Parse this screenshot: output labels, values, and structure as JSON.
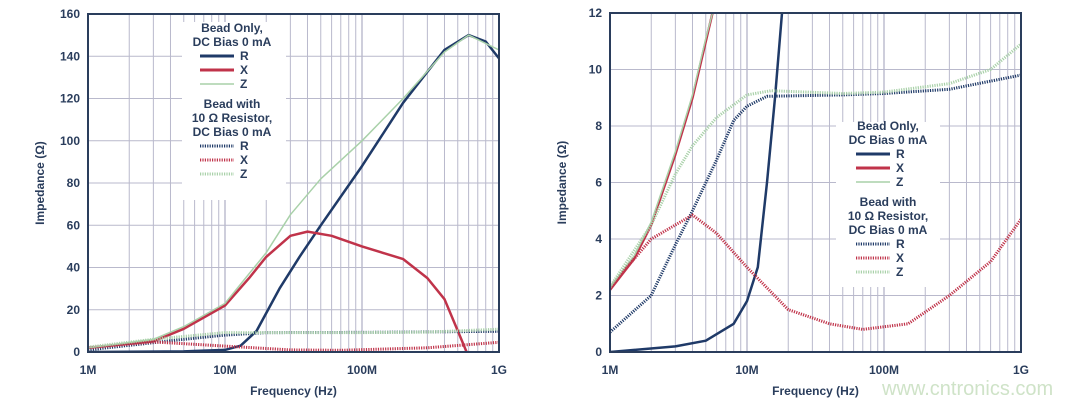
{
  "colors": {
    "R": "#1f3a68",
    "X": "#c0334a",
    "Z": "#a9d1a9",
    "grid": "#b9b9cc",
    "axis": "#2a3d5c"
  },
  "watermark": "www.cntronics.com",
  "chart_data": [
    {
      "type": "line",
      "xscale": "log",
      "xlabel": "Frequency (Hz)",
      "ylabel": "Impedance (Ω)",
      "xlim": [
        1,
        1000
      ],
      "ylim": [
        0,
        160
      ],
      "grid": true,
      "legend_position": "top-center",
      "xticks": [
        {
          "v": 1,
          "label": "1M"
        },
        {
          "v": 10,
          "label": "10M"
        },
        {
          "v": 100,
          "label": "100M"
        },
        {
          "v": 1000,
          "label": "1G"
        }
      ],
      "yticks": [
        0,
        20,
        40,
        60,
        80,
        100,
        120,
        140,
        160
      ],
      "legend": {
        "group1": [
          "Bead Only,",
          "DC Bias 0 mA"
        ],
        "group2": [
          "Bead with",
          "10 Ω Resistor,",
          "DC Bias 0 mA"
        ]
      },
      "series": [
        {
          "name": "R",
          "group": "group1",
          "style": "solid",
          "x": [
            1,
            5,
            10,
            13,
            17,
            25,
            35,
            50,
            100,
            200,
            400,
            600,
            800,
            1000
          ],
          "y": [
            0,
            0.3,
            1,
            3,
            10,
            30,
            45,
            60,
            88,
            118,
            143,
            150,
            147,
            139
          ]
        },
        {
          "name": "X",
          "group": "group1",
          "style": "solid",
          "x": [
            1,
            3,
            5,
            10,
            15,
            20,
            30,
            40,
            60,
            100,
            200,
            300,
            400,
            500,
            580
          ],
          "y": [
            2,
            5,
            11,
            22,
            35,
            45,
            55,
            57,
            55,
            50,
            44,
            35,
            25,
            10,
            0
          ]
        },
        {
          "name": "Z",
          "group": "group1",
          "style": "solid",
          "x": [
            1,
            3,
            5,
            10,
            20,
            30,
            50,
            100,
            200,
            400,
            600,
            1000
          ],
          "y": [
            2,
            6,
            12,
            23,
            47,
            65,
            82,
            100,
            120,
            142,
            150,
            143
          ]
        },
        {
          "name": "R",
          "group": "group2",
          "style": "dotted",
          "x": [
            1,
            5,
            10,
            20,
            100,
            1000
          ],
          "y": [
            1,
            6,
            8,
            9.2,
            9.3,
            9.8
          ]
        },
        {
          "name": "X",
          "group": "group2",
          "style": "dotted",
          "x": [
            1,
            3,
            10,
            30,
            70,
            300,
            1000
          ],
          "y": [
            2,
            4.8,
            2.8,
            1,
            0.8,
            2,
            4.6
          ]
        },
        {
          "name": "Z",
          "group": "group2",
          "style": "dotted",
          "x": [
            1,
            3,
            10,
            100,
            300,
            1000
          ],
          "y": [
            2.3,
            6,
            9.2,
            9.2,
            9.4,
            10.8
          ]
        }
      ]
    },
    {
      "type": "line",
      "xscale": "log",
      "xlabel": "Frequency (Hz)",
      "ylabel": "Impedance (Ω)",
      "xlim": [
        1,
        1000
      ],
      "ylim": [
        0,
        12
      ],
      "grid": true,
      "legend_position": "center-right",
      "xticks": [
        {
          "v": 1,
          "label": "1M"
        },
        {
          "v": 10,
          "label": "10M"
        },
        {
          "v": 100,
          "label": "100M"
        },
        {
          "v": 1000,
          "label": "1G"
        }
      ],
      "yticks": [
        0,
        2,
        4,
        6,
        8,
        10,
        12
      ],
      "legend": {
        "group1": [
          "Bead Only,",
          "DC Bias 0 mA"
        ],
        "group2": [
          "Bead with",
          "10 Ω Resistor,",
          "DC Bias 0 mA"
        ]
      },
      "series": [
        {
          "name": "R",
          "group": "group1",
          "style": "solid",
          "x": [
            1,
            3,
            5,
            8,
            10,
            12,
            14,
            16,
            18,
            19
          ],
          "y": [
            0,
            0.2,
            0.4,
            1,
            1.8,
            3,
            6,
            9,
            12,
            13
          ]
        },
        {
          "name": "X",
          "group": "group1",
          "style": "solid",
          "x": [
            1,
            1.5,
            2,
            3,
            4,
            5,
            5.6,
            6
          ],
          "y": [
            2.2,
            3.3,
            4.5,
            7,
            9,
            11,
            12,
            13
          ]
        },
        {
          "name": "Z",
          "group": "group1",
          "style": "solid",
          "x": [
            1,
            1.5,
            2,
            3,
            4,
            5,
            5.6,
            6
          ],
          "y": [
            2.3,
            3.4,
            4.6,
            7.1,
            9.1,
            11.1,
            12,
            13
          ]
        },
        {
          "name": "R",
          "group": "group2",
          "style": "dotted",
          "x": [
            1,
            2,
            3,
            4,
            6,
            8,
            10,
            14,
            50,
            100,
            300,
            1000
          ],
          "y": [
            0.7,
            2,
            3.8,
            5,
            6.8,
            8.2,
            8.7,
            9.05,
            9.1,
            9.15,
            9.3,
            9.8
          ]
        },
        {
          "name": "X",
          "group": "group2",
          "style": "dotted",
          "x": [
            1,
            2,
            4,
            6,
            10,
            20,
            40,
            70,
            150,
            300,
            600,
            1000
          ],
          "y": [
            2.3,
            4,
            4.85,
            4.2,
            3,
            1.5,
            1,
            0.8,
            1,
            2,
            3.2,
            4.7
          ]
        },
        {
          "name": "Z",
          "group": "group2",
          "style": "dotted",
          "x": [
            1,
            2,
            3,
            4,
            6,
            10,
            15,
            50,
            100,
            300,
            600,
            1000
          ],
          "y": [
            2.3,
            4.5,
            6.3,
            7.3,
            8.3,
            9.1,
            9.25,
            9.15,
            9.2,
            9.5,
            10,
            10.9
          ]
        }
      ]
    }
  ]
}
